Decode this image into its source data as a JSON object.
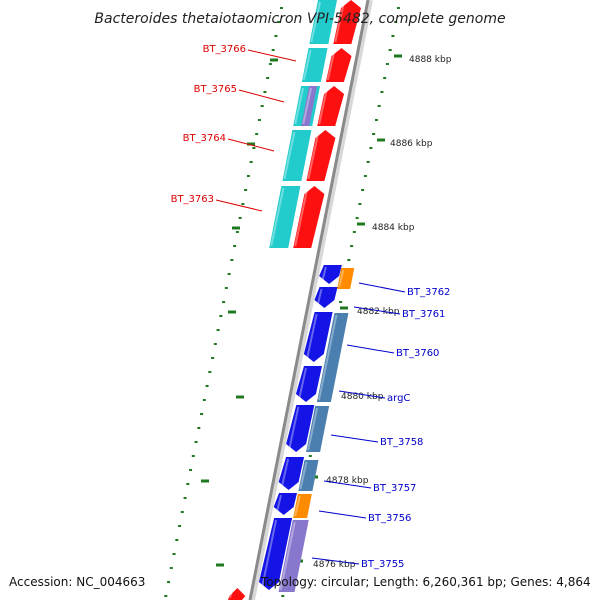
{
  "title": "Bacteroides thetaiotaomicron VPI-5482, complete genome",
  "footer": {
    "accession": "Accession: NC_004663",
    "summary": "Topology: circular; Length: 6,260,361 bp; Genes: 4,864"
  },
  "colors": {
    "backbone": "#8a8a8a",
    "ticks": "#1f7a1f",
    "plus_label": "#0000cc",
    "minus_label": "#dd0000",
    "cds_forward": "#1414e6",
    "cds_reverse": "#ff1010",
    "cog_cyan": "#22cccc",
    "cog_steel": "#4a7fb0",
    "cog_orange": "#ff8c00",
    "cog_lavender": "#8877cc"
  },
  "ticks": [
    {
      "label": "4888 kbp",
      "kbp": 4888
    },
    {
      "label": "4886 kbp",
      "kbp": 4886
    },
    {
      "label": "4884 kbp",
      "kbp": 4884
    },
    {
      "label": "4882 kbp",
      "kbp": 4882
    },
    {
      "label": "4880 kbp",
      "kbp": 4880
    },
    {
      "label": "4878 kbp",
      "kbp": 4878
    },
    {
      "label": "4876 kbp",
      "kbp": 4876
    }
  ],
  "genes": [
    {
      "name": "BT_3766",
      "strand": "minus"
    },
    {
      "name": "BT_3765",
      "strand": "minus"
    },
    {
      "name": "BT_3764",
      "strand": "minus"
    },
    {
      "name": "BT_3763",
      "strand": "minus"
    },
    {
      "name": "BT_3762",
      "strand": "plus"
    },
    {
      "name": "BT_3761",
      "strand": "plus"
    },
    {
      "name": "BT_3760",
      "strand": "plus"
    },
    {
      "name": "argC",
      "strand": "plus"
    },
    {
      "name": "BT_3758",
      "strand": "plus"
    },
    {
      "name": "BT_3757",
      "strand": "plus"
    },
    {
      "name": "BT_3756",
      "strand": "plus"
    },
    {
      "name": "BT_3755",
      "strand": "plus"
    }
  ]
}
